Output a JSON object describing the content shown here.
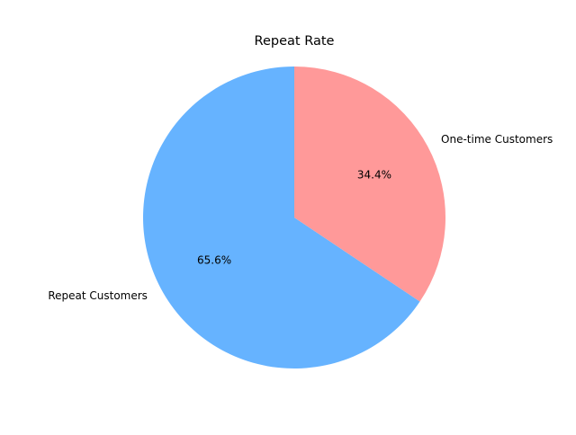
{
  "chart_data": {
    "type": "pie",
    "title": "Repeat Rate",
    "categories": [
      "Repeat Customers",
      "One-time Customers"
    ],
    "values": [
      65.6,
      34.4
    ],
    "value_labels": [
      "65.6%",
      "34.4%"
    ],
    "colors": [
      "#66b3ff",
      "#ff9999"
    ],
    "legend": "none",
    "start": "top",
    "direction": "counterclockwise"
  }
}
